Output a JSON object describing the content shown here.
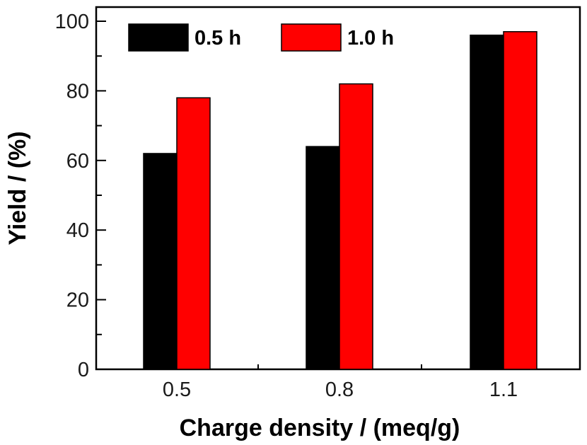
{
  "chart_data": {
    "type": "bar",
    "categories": [
      "0.5",
      "0.8",
      "1.1"
    ],
    "series": [
      {
        "name": "0.5 h",
        "values": [
          62,
          64,
          96
        ],
        "color": "#000000"
      },
      {
        "name": "1.0 h",
        "values": [
          78,
          82,
          97
        ],
        "color": "#ff0000"
      }
    ],
    "xlabel": "Charge density / (meq/g)",
    "ylabel": "Yield / (%)",
    "ylim": [
      0,
      100
    ],
    "yticks": [
      0,
      20,
      40,
      60,
      80,
      100
    ],
    "grid": false,
    "legend": "top-left"
  }
}
